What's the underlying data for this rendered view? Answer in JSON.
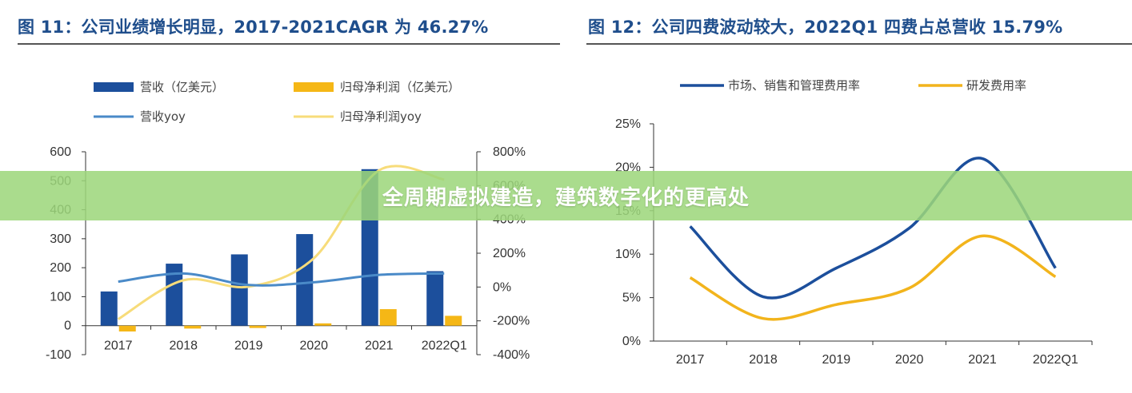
{
  "banner": {
    "text": "全周期虚拟建造，建筑数字化的更高处"
  },
  "colors": {
    "title": "#1f4e8c",
    "bar_revenue": "#1c4f9c",
    "bar_profit": "#f5b716",
    "line_revenue_yoy": "#4a8ac8",
    "line_profit_yoy": "#f7dc7a",
    "line_expense": "#1c4f9c",
    "line_rd": "#f2b41c",
    "banner": "#9cd67a"
  },
  "chart_data": [
    {
      "type": "bar",
      "title": "图 11：公司业绩增长明显，2017-2021CAGR 为 46.27%",
      "categories": [
        "2017",
        "2018",
        "2019",
        "2020",
        "2021",
        "2022Q1"
      ],
      "legend": [
        "营收（亿美元）",
        "归母净利润（亿美元）",
        "营收yoy",
        "归母净利润yoy"
      ],
      "ylim_left": [
        -100,
        600
      ],
      "ylim_right": [
        -400,
        800
      ],
      "yticks_left": [
        "600",
        "500",
        "400",
        "300",
        "200",
        "100",
        "0",
        "-100"
      ],
      "yticks_right": [
        "800%",
        "600%",
        "400%",
        "200%",
        "0%",
        "-200%",
        "-400%"
      ],
      "series": [
        {
          "name": "营收（亿美元）",
          "kind": "bar",
          "axis": "left",
          "values": [
            118,
            214,
            246,
            316,
            540,
            188
          ]
        },
        {
          "name": "归母净利润（亿美元）",
          "kind": "bar",
          "axis": "left",
          "values": [
            -20,
            -10,
            -8,
            8,
            57,
            34
          ]
        },
        {
          "name": "营收yoy",
          "kind": "line",
          "axis": "right",
          "values": [
            32,
            80,
            12,
            28,
            72,
            80
          ]
        },
        {
          "name": "归母净利润yoy",
          "kind": "line",
          "axis": "right",
          "values": [
            -190,
            40,
            2,
            170,
            690,
            635
          ]
        }
      ]
    },
    {
      "type": "line",
      "title": "图 12：公司四费波动较大，2022Q1 四费占总营收 15.79%",
      "categories": [
        "2017",
        "2018",
        "2019",
        "2020",
        "2021",
        "2022Q1"
      ],
      "legend": [
        "市场、销售和管理费用率",
        "研发费用率"
      ],
      "ylim": [
        0,
        25
      ],
      "yticks": [
        "25%",
        "20%",
        "15%",
        "10%",
        "5%",
        "0%"
      ],
      "series": [
        {
          "name": "市场、销售和管理费用率",
          "values": [
            13.2,
            5.1,
            8.4,
            13.0,
            21.0,
            8.4
          ]
        },
        {
          "name": "研发费用率",
          "values": [
            7.3,
            2.6,
            4.2,
            6.1,
            12.1,
            7.4
          ]
        }
      ]
    }
  ]
}
